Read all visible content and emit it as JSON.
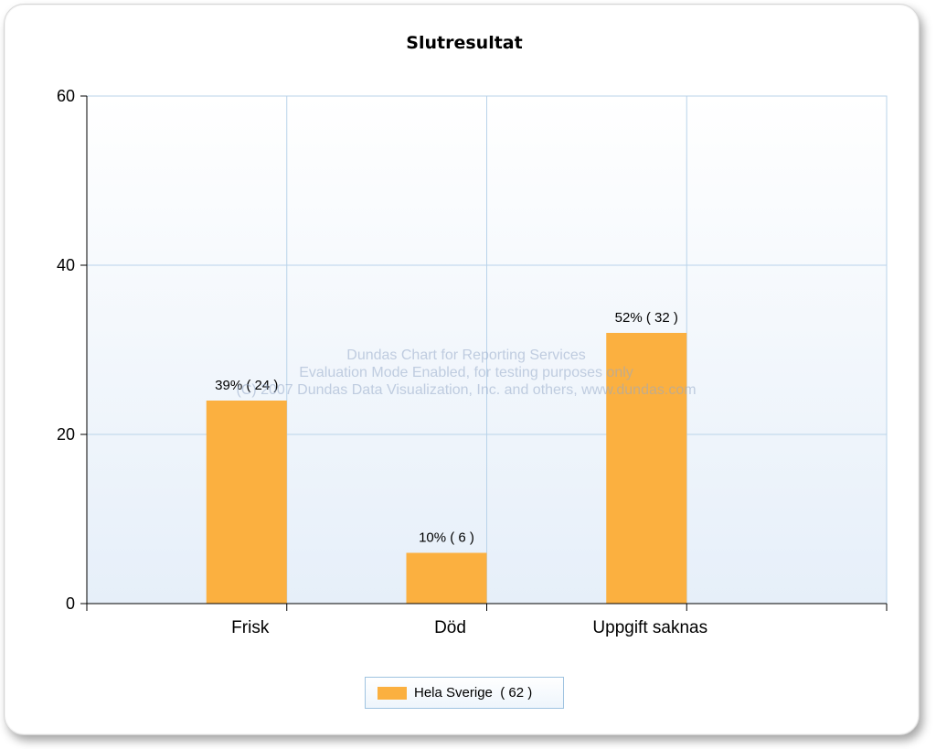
{
  "chart_data": {
    "type": "bar",
    "title": "Slutresultat",
    "categories": [
      "Frisk",
      "Död",
      "Uppgift saknas"
    ],
    "series": [
      {
        "name": "Hela Sverige  ( 62 )",
        "values": [
          24,
          6,
          32
        ],
        "labels": [
          "39% ( 24 )",
          "10% ( 6 )",
          "52% ( 32 )"
        ],
        "color": "#fbb040"
      }
    ],
    "ylim": [
      0,
      60
    ],
    "yticks": [
      "0",
      "20",
      "40",
      "60"
    ],
    "xlabel": "",
    "ylabel": "",
    "grid": true,
    "legend": "bottom-center"
  },
  "watermark": {
    "line1": "Dundas Chart for Reporting Services",
    "line2": "Evaluation Mode Enabled, for testing purposes only",
    "line3": "(C) 2007 Dundas Data Visualization, Inc. and others, www.dundas.com"
  },
  "colors": {
    "bar": "#fbb040",
    "grid": "#b9d3ea",
    "plot_top": "#ffffff",
    "plot_bottom": "#e6eff9"
  }
}
